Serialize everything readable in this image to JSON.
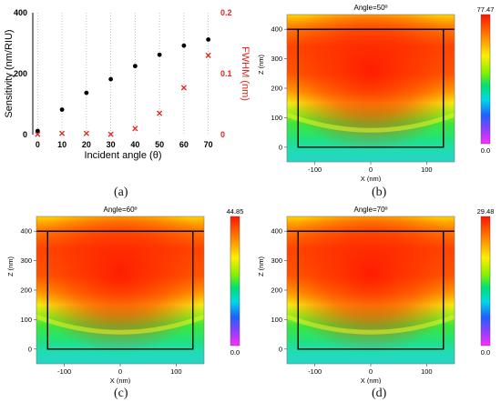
{
  "colors": {
    "sensitivity": "#000000",
    "fwhm": "#e8231b",
    "frame": "#000000",
    "field_high": "#ff1a00",
    "field_low": "#ff00ff"
  },
  "captions": {
    "a": "(a)",
    "b": "(b)",
    "c": "(c)",
    "d": "(d)"
  },
  "chart_data": [
    {
      "id": "a",
      "type": "scatter",
      "title": "",
      "xlabel": "Incident angle (θ)",
      "ylabel": "Sensitivity (nm/RIU)",
      "y2label": "FWHM (nm)",
      "xlim": [
        -2,
        72
      ],
      "ylim": [
        0,
        400
      ],
      "y2lim": [
        0,
        0.2
      ],
      "x_ticks": [
        "0",
        "10",
        "20",
        "30",
        "40",
        "50",
        "60",
        "70"
      ],
      "y_ticks": [
        "0",
        "200",
        "400"
      ],
      "y2_ticks": [
        "0",
        "0.1",
        "0.2"
      ],
      "grid": "vertical dotted",
      "series": [
        {
          "axis": "left",
          "marker": "dot",
          "color": "#000000",
          "x": [
            0,
            10,
            20,
            30,
            40,
            50,
            60,
            70
          ],
          "y": [
            12,
            82,
            137,
            182,
            225,
            262,
            292,
            312
          ]
        },
        {
          "axis": "right",
          "marker": "x",
          "color": "#e8231b",
          "x": [
            0,
            10,
            20,
            30,
            40,
            50,
            60,
            70
          ],
          "y": [
            0.0005,
            0.002,
            0.002,
            0.0005,
            0.01,
            0.035,
            0.077,
            0.13
          ]
        }
      ]
    },
    {
      "id": "b",
      "type": "heatmap",
      "title": "Angle=50º",
      "xlabel": "X (nm)",
      "ylabel": "Z (nm)",
      "xlim": [
        -150,
        150
      ],
      "ylim": [
        -50,
        450
      ],
      "x_ticks": [
        "-100",
        "0",
        "100"
      ],
      "y_ticks": [
        "0",
        "100",
        "200",
        "300",
        "400"
      ],
      "colorbar": {
        "min_label": "0.0",
        "max_label": "77.47"
      }
    },
    {
      "id": "c",
      "type": "heatmap",
      "title": "Angle=60º",
      "xlabel": "X (nm)",
      "ylabel": "Z (nm)",
      "xlim": [
        -150,
        150
      ],
      "ylim": [
        -50,
        450
      ],
      "x_ticks": [
        "-100",
        "0",
        "100"
      ],
      "y_ticks": [
        "0",
        "100",
        "200",
        "300",
        "400"
      ],
      "colorbar": {
        "min_label": "0.0",
        "max_label": "44.85"
      }
    },
    {
      "id": "d",
      "type": "heatmap",
      "title": "Angle=70º",
      "xlabel": "X (nm)",
      "ylabel": "Z (nm)",
      "xlim": [
        -150,
        150
      ],
      "ylim": [
        -50,
        450
      ],
      "x_ticks": [
        "-100",
        "0",
        "100"
      ],
      "y_ticks": [
        "0",
        "100",
        "200",
        "300",
        "400"
      ],
      "colorbar": {
        "min_label": "0.0",
        "max_label": "29.48"
      }
    }
  ]
}
